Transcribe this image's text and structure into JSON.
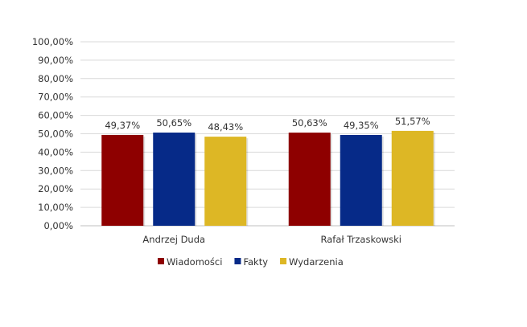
{
  "chart_data": {
    "type": "bar",
    "title": "",
    "xlabel": "",
    "ylabel": "",
    "categories": [
      "Andrzej Duda",
      "Rafał Trzaskowski"
    ],
    "series": [
      {
        "name": "Wiadomości",
        "values": [
          49.37,
          50.63
        ],
        "labels": [
          "49,37%",
          "50,63%"
        ],
        "color": "#8E0000"
      },
      {
        "name": "Fakty",
        "values": [
          50.65,
          49.35
        ],
        "labels": [
          "50,65%",
          "49,35%"
        ],
        "color": "#062A88"
      },
      {
        "name": "Wydarzenia",
        "values": [
          48.43,
          51.57
        ],
        "labels": [
          "48,43%",
          "51,57%"
        ],
        "color": "#DDB725"
      }
    ],
    "ylim": [
      0,
      100
    ],
    "yticks": [
      "0,00%",
      "10,00%",
      "20,00%",
      "30,00%",
      "40,00%",
      "50,00%",
      "60,00%",
      "70,00%",
      "80,00%",
      "90,00%",
      "100,00%"
    ],
    "grid": true,
    "legend": "bottom"
  }
}
